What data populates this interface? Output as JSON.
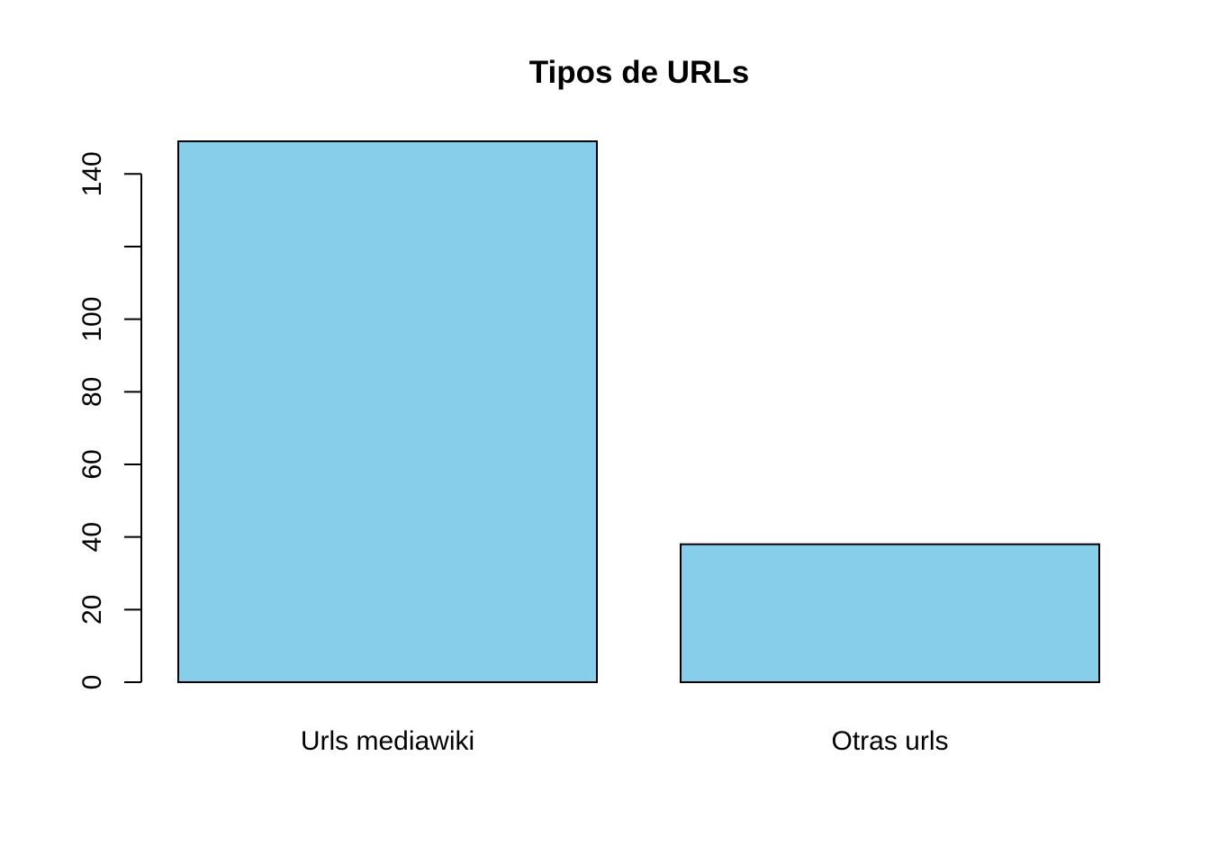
{
  "chart_data": {
    "type": "bar",
    "title": "Tipos de URLs",
    "xlabel": "",
    "ylabel": "",
    "categories": [
      "Urls mediawiki",
      "Otras urls"
    ],
    "values": [
      149,
      38
    ],
    "ylim": [
      0,
      149
    ],
    "yticks": [
      0,
      20,
      40,
      60,
      80,
      100,
      120,
      140
    ],
    "ytick_labels": [
      "0",
      "20",
      "40",
      "60",
      "80",
      "100",
      "",
      "140"
    ],
    "bar_color": "#87CEEB",
    "border_color": "#000000",
    "grid": false,
    "legend": "none"
  }
}
